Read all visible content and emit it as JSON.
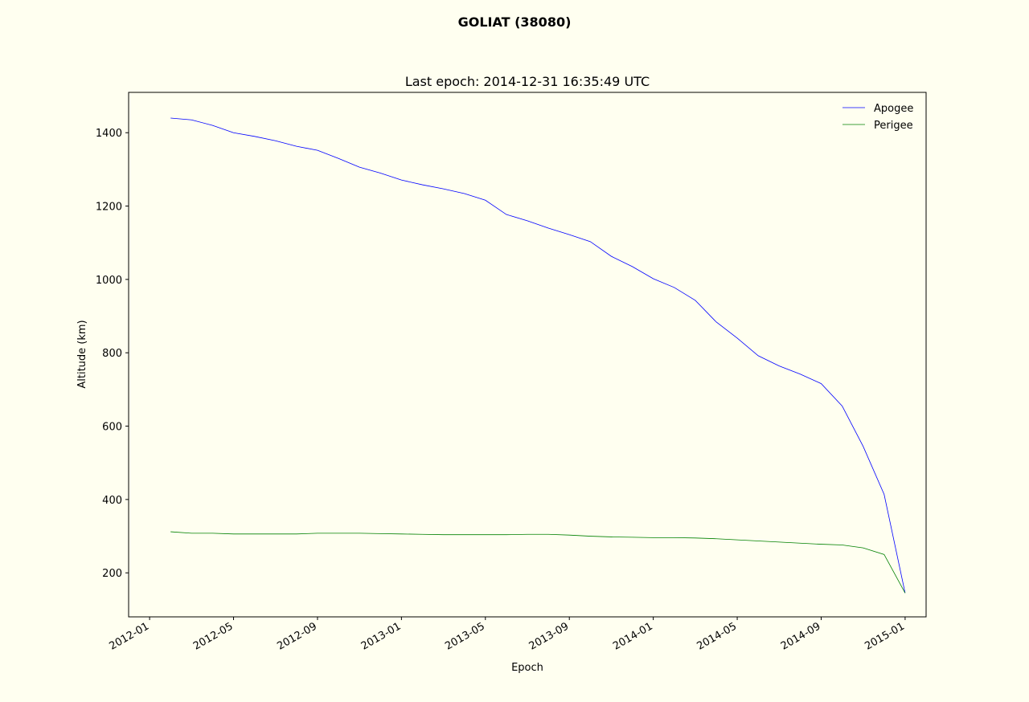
{
  "chart_data": {
    "type": "line",
    "title": "GOLIAT (38080)",
    "subtitle": "Last epoch: 2014-12-31 16:35:49 UTC",
    "xlabel": "Epoch",
    "ylabel": "Altitude (km)",
    "x": [
      "2012-02",
      "2012-03",
      "2012-04",
      "2012-05",
      "2012-06",
      "2012-07",
      "2012-08",
      "2012-09",
      "2012-10",
      "2012-11",
      "2012-12",
      "2013-01",
      "2013-02",
      "2013-03",
      "2013-04",
      "2013-05",
      "2013-06",
      "2013-07",
      "2013-08",
      "2013-09",
      "2013-10",
      "2013-11",
      "2013-12",
      "2014-01",
      "2014-02",
      "2014-03",
      "2014-04",
      "2014-05",
      "2014-06",
      "2014-07",
      "2014-08",
      "2014-09",
      "2014-10",
      "2014-11",
      "2014-12",
      "2015-01"
    ],
    "series": [
      {
        "name": "Apogee",
        "color": "#0000ff",
        "values": [
          1440,
          1435,
          1420,
          1400,
          1390,
          1378,
          1363,
          1352,
          1330,
          1306,
          1290,
          1271,
          1258,
          1247,
          1234,
          1216,
          1177,
          1160,
          1140,
          1122,
          1103,
          1063,
          1035,
          1002,
          978,
          943,
          884,
          840,
          792,
          764,
          742,
          716,
          655,
          545,
          414,
          145
        ]
      },
      {
        "name": "Perigee",
        "color": "#008000",
        "values": [
          312,
          308,
          308,
          306,
          306,
          306,
          306,
          308,
          308,
          308,
          307,
          306,
          305,
          304,
          304,
          304,
          304,
          305,
          305,
          303,
          300,
          298,
          297,
          296,
          296,
          295,
          293,
          290,
          287,
          284,
          281,
          278,
          276,
          268,
          250,
          145
        ]
      }
    ],
    "xlim": [
      "2011-12",
      "2015-02"
    ],
    "xticks": [
      "2012-01",
      "2012-05",
      "2012-09",
      "2013-01",
      "2013-05",
      "2013-09",
      "2014-01",
      "2014-05",
      "2014-09",
      "2015-01"
    ],
    "ylim": [
      80,
      1510
    ],
    "yticks": [
      200,
      400,
      600,
      800,
      1000,
      1200,
      1400
    ],
    "legend": "upper right"
  }
}
